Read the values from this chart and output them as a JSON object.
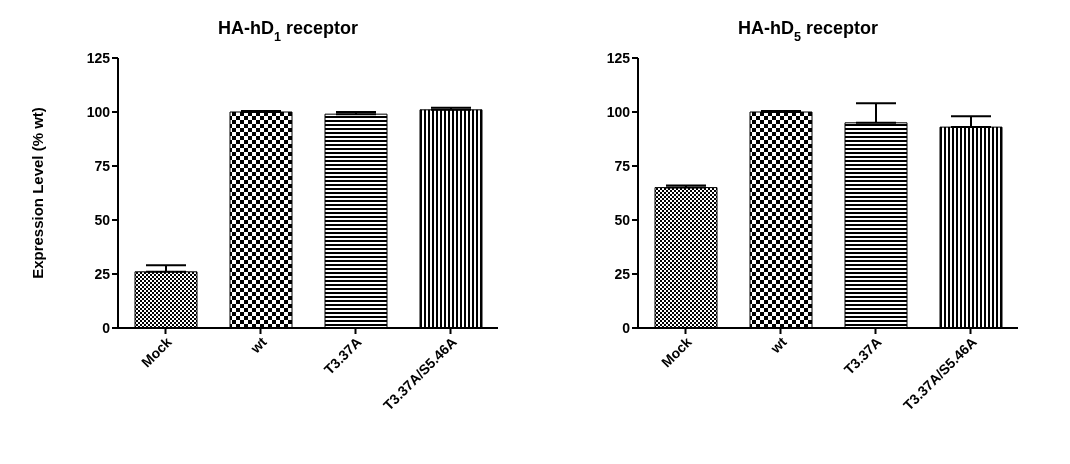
{
  "chart_data": [
    {
      "type": "bar",
      "title": "HA-hD$_{1}$ receptor",
      "ylabel": "Expression Level (% wt)",
      "categories": [
        "Mock",
        "wt",
        "T3.37A",
        "T3.37A/S5.46A"
      ],
      "values": [
        26,
        100,
        99,
        101
      ],
      "errors": [
        [
          26,
          29
        ],
        [
          100,
          100.5
        ],
        [
          99,
          100
        ],
        [
          101,
          102
        ]
      ],
      "colors": [
        "#000000",
        "#000000",
        "#000000",
        "#000000"
      ],
      "ylim": [
        0,
        125
      ],
      "yticks": [
        0,
        25,
        50,
        75,
        100,
        125
      ],
      "grid": false
    },
    {
      "type": "bar",
      "title": "HA-hD$_{5}$ receptor",
      "categories": [
        "Mock",
        "wt",
        "T3.37A",
        "T3.37A/S5.46A"
      ],
      "values": [
        65,
        100,
        95,
        93
      ],
      "errors": [
        [
          65,
          66
        ],
        [
          100,
          100.5
        ],
        [
          95,
          104
        ],
        [
          93,
          98
        ]
      ],
      "colors": [
        "#000000",
        "#000000",
        "#000000",
        "#000000"
      ],
      "ylim": [
        0,
        125
      ],
      "yticks": [
        0,
        25,
        50,
        75,
        100,
        125
      ],
      "grid": false
    }
  ]
}
